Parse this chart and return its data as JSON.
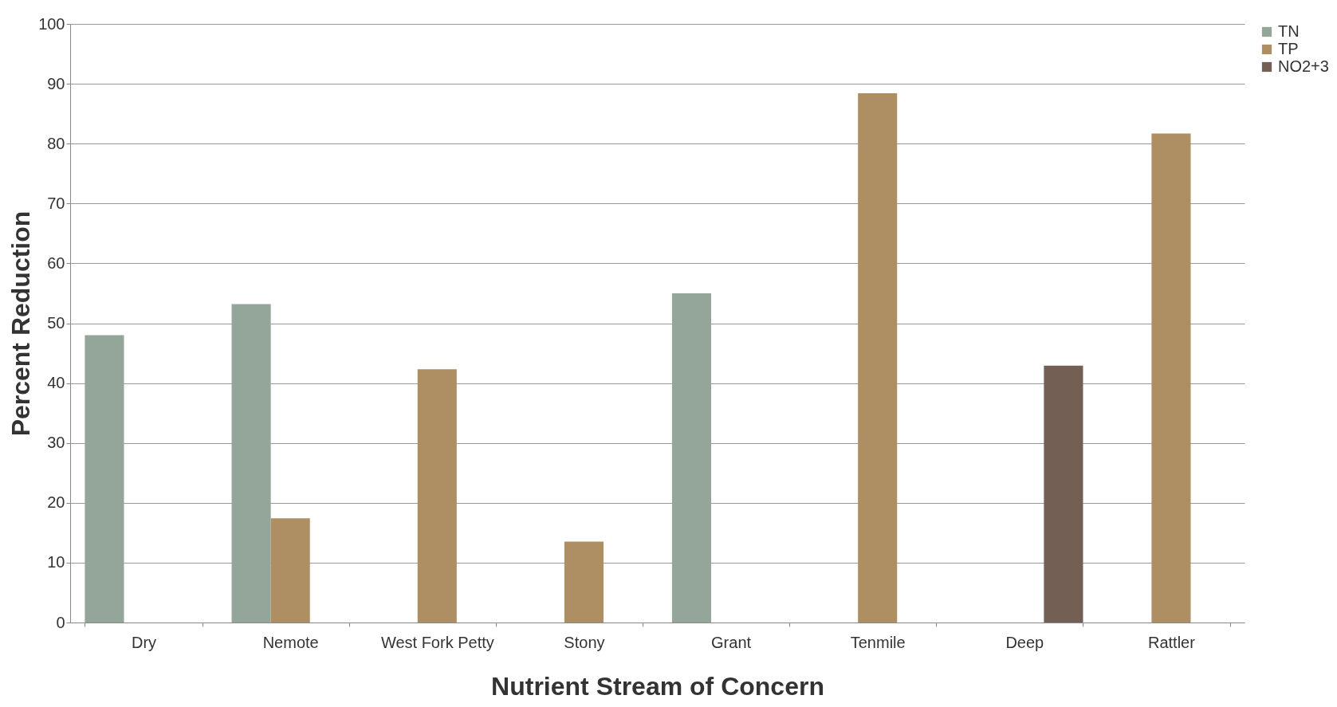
{
  "chart_data": {
    "type": "bar",
    "xlabel": "Nutrient Stream of Concern",
    "ylabel": "Percent Reduction",
    "categories": [
      "Dry",
      "Nemote",
      "West Fork Petty",
      "Stony",
      "Grant",
      "Tenmile",
      "Deep",
      "Rattler"
    ],
    "series": [
      {
        "name": "TN",
        "color": "#94a59a",
        "values": [
          48,
          53.2,
          null,
          null,
          55,
          null,
          null,
          null
        ]
      },
      {
        "name": "TP",
        "color": "#ad8f63",
        "values": [
          null,
          17.4,
          42.3,
          13.5,
          null,
          88.4,
          null,
          81.7
        ]
      },
      {
        "name": "NO2+3",
        "color": "#735f54",
        "values": [
          null,
          null,
          null,
          null,
          null,
          null,
          42.9,
          null
        ]
      }
    ],
    "ylim": [
      0,
      100
    ],
    "yticks": [
      0,
      10,
      20,
      30,
      40,
      50,
      60,
      70,
      80,
      90,
      100
    ],
    "grid": "y",
    "legend": "right"
  }
}
